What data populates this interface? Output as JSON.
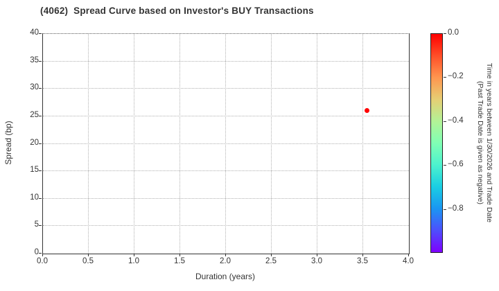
{
  "title": "(4062)  Spread Curve based on Investor's BUY Transactions",
  "chart_data": {
    "type": "scatter",
    "title": "(4062)  Spread Curve based on Investor's BUY Transactions",
    "xlabel": "Duration (years)",
    "ylabel": "Spread (bp)",
    "xlim": [
      0.0,
      4.0
    ],
    "ylim": [
      0,
      40
    ],
    "grid": true,
    "x_ticks": {
      "values": [
        0,
        0.5,
        1,
        1.5,
        2,
        2.5,
        3,
        3.5,
        4
      ],
      "labels": [
        "0.0",
        "0.5",
        "1.0",
        "1.5",
        "2.0",
        "2.5",
        "3.0",
        "3.5",
        "4.0"
      ]
    },
    "y_ticks": {
      "values": [
        0,
        5,
        10,
        15,
        20,
        25,
        30,
        35,
        40
      ],
      "labels": [
        "0",
        "5",
        "10",
        "15",
        "20",
        "25",
        "30",
        "35",
        "40"
      ]
    },
    "points": [
      {
        "x": 3.55,
        "y": 25.9,
        "color": "#ff0000",
        "time_value": 0.0
      }
    ],
    "colorbar": {
      "label_line1": "Time in years between 1/30/2026 and Trade Date",
      "label_line2": "(Past Trade Date is given as negative)",
      "range_top": 0.0,
      "range_bottom": -1.0,
      "colormap": "rainbow",
      "ticks": {
        "values": [
          0,
          -0.2,
          -0.4,
          -0.6,
          -0.8
        ],
        "labels": [
          "0.0",
          "−0.2",
          "−0.4",
          "−0.6",
          "−0.8"
        ]
      },
      "gradient_stops": [
        {
          "value": 0.0,
          "color": "#ff0000"
        },
        {
          "value": -0.1,
          "color": "#ff4f28"
        },
        {
          "value": -0.2,
          "color": "#ff964f"
        },
        {
          "value": -0.3,
          "color": "#e6ce74"
        },
        {
          "value": -0.4,
          "color": "#b3f296"
        },
        {
          "value": -0.5,
          "color": "#80ffb4"
        },
        {
          "value": -0.6,
          "color": "#4df2ce"
        },
        {
          "value": -0.7,
          "color": "#1acee3"
        },
        {
          "value": -0.8,
          "color": "#1a96f2"
        },
        {
          "value": -0.9,
          "color": "#4d4ffc"
        },
        {
          "value": -1.0,
          "color": "#7f00ff"
        }
      ]
    }
  }
}
